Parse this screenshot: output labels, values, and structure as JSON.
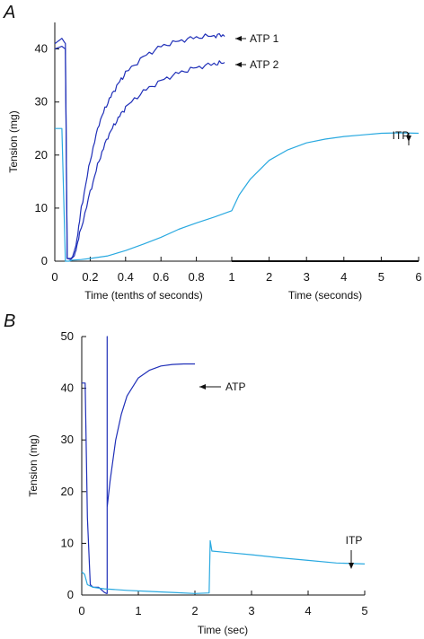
{
  "colors": {
    "atp": "#1f2fb8",
    "itp": "#29a9e0",
    "axis": "#111111"
  },
  "chart_data": [
    {
      "panel": "A",
      "type": "line",
      "ylabel": "Tension (mg)",
      "ylim": [
        0,
        45
      ],
      "yticks": [
        "0",
        "10",
        "20",
        "30",
        "40"
      ],
      "x_segments": [
        {
          "label": "Time (tenths of seconds)",
          "range": [
            0,
            1
          ],
          "ticks": [
            "0",
            "0.2",
            "0.4",
            "0.6",
            "0.8",
            "1"
          ]
        },
        {
          "label": "Time (seconds)",
          "range": [
            1,
            6
          ],
          "ticks": [
            "2",
            "3",
            "4",
            "5",
            "6"
          ]
        }
      ],
      "series": [
        {
          "name": "ATP 1",
          "color_key": "atp",
          "segment": 0,
          "x": [
            0,
            0.04,
            0.06,
            0.07,
            0.09,
            0.1,
            0.12,
            0.15,
            0.2,
            0.25,
            0.3,
            0.35,
            0.4,
            0.5,
            0.6,
            0.7,
            0.8,
            0.9,
            0.96
          ],
          "y": [
            41,
            42,
            41,
            0.5,
            0.5,
            0.8,
            3,
            10,
            19,
            26,
            30,
            33,
            35.5,
            38.5,
            40.5,
            41.5,
            42.2,
            42.5,
            42.6
          ]
        },
        {
          "name": "ATP 2",
          "color_key": "atp",
          "segment": 0,
          "x": [
            0,
            0.04,
            0.06,
            0.07,
            0.09,
            0.11,
            0.14,
            0.2,
            0.25,
            0.3,
            0.35,
            0.4,
            0.5,
            0.6,
            0.7,
            0.8,
            0.9,
            0.96
          ],
          "y": [
            40,
            40.5,
            40,
            0.5,
            0.3,
            1,
            5,
            13,
            19,
            23.5,
            26.5,
            29,
            32,
            34,
            35.5,
            36.5,
            37.2,
            37.4
          ]
        },
        {
          "name": "ITP",
          "color_key": "itp",
          "segment": "both",
          "x": [
            0,
            0.04,
            0.06,
            0.08,
            0.1,
            0.15,
            0.2,
            0.3,
            0.4,
            0.5,
            0.6,
            0.7,
            0.8,
            0.9,
            1,
            1.2,
            1.5,
            2,
            2.5,
            3,
            3.5,
            4,
            4.5,
            5,
            5.5,
            6
          ],
          "y": [
            25,
            25,
            0,
            0,
            0.2,
            0.3,
            0.5,
            1,
            2,
            3.2,
            4.5,
            6,
            7.2,
            8.3,
            9.5,
            12.5,
            15.5,
            19,
            21,
            22.3,
            23,
            23.5,
            23.8,
            24.1,
            24.2,
            24.1
          ]
        }
      ],
      "annotations": [
        {
          "text": "ATP 1",
          "series": "ATP 1"
        },
        {
          "text": "ATP 2",
          "series": "ATP 2"
        },
        {
          "text": "ITP",
          "series": "ITP"
        }
      ]
    },
    {
      "panel": "B",
      "type": "line",
      "ylabel": "Tension (mg)",
      "xlabel": "Time (sec)",
      "xlim": [
        0,
        5
      ],
      "ylim": [
        0,
        50
      ],
      "xticks": [
        "0",
        "1",
        "2",
        "3",
        "4",
        "5"
      ],
      "yticks": [
        "0",
        "10",
        "20",
        "30",
        "40",
        "50"
      ],
      "series": [
        {
          "name": "ATP",
          "color_key": "atp",
          "x": [
            0,
            0.06,
            0.1,
            0.15,
            0.2,
            0.3,
            0.4,
            0.44,
            0.45,
            0.45,
            0.45,
            0.5,
            0.6,
            0.7,
            0.8,
            1,
            1.2,
            1.4,
            1.6,
            1.8,
            2.0
          ],
          "y": [
            41,
            41,
            15,
            2,
            1.5,
            1.5,
            0.5,
            0.3,
            0.3,
            50,
            17,
            22,
            30,
            35,
            38.5,
            42,
            43.5,
            44.3,
            44.6,
            44.7,
            44.7
          ]
        },
        {
          "name": "ITP",
          "color_key": "itp",
          "x": [
            0,
            0.05,
            0.1,
            0.2,
            0.4,
            0.8,
            1.2,
            1.6,
            2.0,
            2.25,
            2.27,
            2.3,
            2.5,
            3,
            3.5,
            4,
            4.5,
            5
          ],
          "y": [
            4.5,
            4,
            2,
            1.5,
            1.2,
            0.9,
            0.7,
            0.5,
            0.3,
            0.4,
            10.5,
            8.5,
            8.3,
            7.8,
            7.2,
            6.7,
            6.2,
            6.0
          ]
        }
      ],
      "annotations": [
        {
          "text": "ATP",
          "series": "ATP"
        },
        {
          "text": "ITP",
          "series": "ITP"
        }
      ]
    }
  ]
}
